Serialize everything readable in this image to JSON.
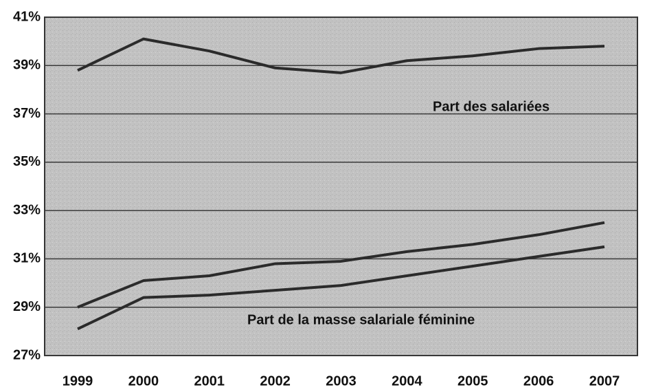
{
  "chart_data": {
    "type": "line",
    "categories": [
      "1999",
      "2000",
      "2001",
      "2002",
      "2003",
      "2004",
      "2005",
      "2006",
      "2007"
    ],
    "series": [
      {
        "color": "#2b2b2b",
        "values": [
          38.8,
          40.1,
          39.6,
          38.9,
          38.7,
          39.2,
          39.4,
          39.7,
          39.8
        ]
      },
      {
        "color": "#2b2b2b",
        "values": [
          29.0,
          30.1,
          30.3,
          30.8,
          30.9,
          31.3,
          31.6,
          32.0,
          32.5
        ]
      },
      {
        "color": "#2b2b2b",
        "values": [
          28.1,
          29.4,
          29.5,
          29.7,
          29.9,
          30.3,
          30.7,
          31.1,
          31.5
        ]
      }
    ],
    "annotations": [
      "Part des salariées",
      "Part de la masse salariale féminine"
    ],
    "ylim": [
      27,
      41
    ],
    "yticks": [
      {
        "value": 27,
        "label": "27%"
      },
      {
        "value": 29,
        "label": "29%"
      },
      {
        "value": 31,
        "label": "31%"
      },
      {
        "value": 33,
        "label": "33%"
      },
      {
        "value": 35,
        "label": "35%"
      },
      {
        "value": 37,
        "label": "37%"
      },
      {
        "value": 39,
        "label": "39%"
      },
      {
        "value": 41,
        "label": "41%"
      }
    ],
    "grid": true
  }
}
